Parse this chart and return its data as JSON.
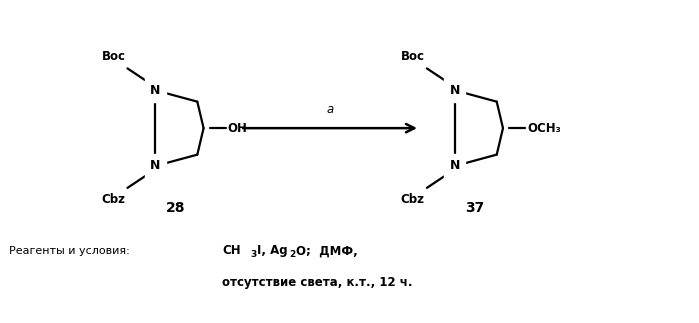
{
  "bg_color": "#ffffff",
  "figure_width": 6.99,
  "figure_height": 3.23,
  "dpi": 100,
  "compound28_label": "28",
  "compound37_label": "37",
  "arrow_label": "a",
  "boc_label": "Boc",
  "cbz_label": "Cbz",
  "oh_label": "OH",
  "och3_label": "OCH₃"
}
